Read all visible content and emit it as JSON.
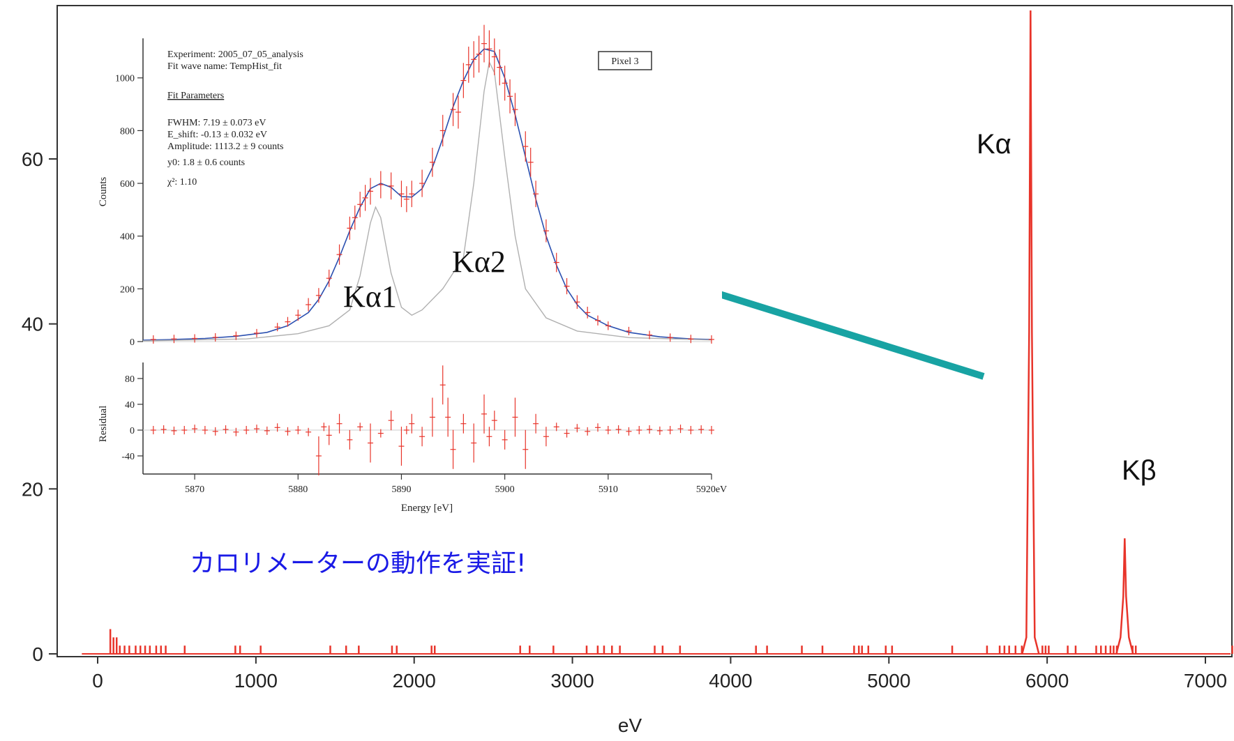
{
  "chart_data": [
    {
      "type": "line",
      "xlabel": "eV",
      "ylabel": "",
      "xlim": [
        -100,
        7200
      ],
      "ylim": [
        -1,
        78
      ],
      "xticks": [
        0,
        1000,
        2000,
        3000,
        4000,
        5000,
        6000,
        7000
      ],
      "yticks": [
        0,
        20,
        40,
        60
      ],
      "grid": false,
      "series": [
        {
          "color": "#e8342a",
          "peaks": [
            {
              "x": 5895,
              "y": 78,
              "label": "Kα"
            },
            {
              "x": 6490,
              "y": 14,
              "label": "Kβ"
            }
          ],
          "noise": [
            [
              80,
              3
            ],
            [
              100,
              2
            ],
            [
              120,
              2
            ],
            [
              140,
              1
            ],
            [
              170,
              1
            ],
            [
              200,
              1
            ],
            [
              240,
              1
            ],
            [
              270,
              1
            ],
            [
              300,
              1
            ],
            [
              330,
              1
            ],
            [
              370,
              1
            ],
            [
              400,
              1
            ],
            [
              430,
              1
            ],
            [
              550,
              1
            ],
            [
              870,
              1
            ],
            [
              900,
              1
            ],
            [
              1030,
              1
            ],
            [
              1470,
              1
            ],
            [
              1570,
              1
            ],
            [
              1650,
              1
            ],
            [
              1860,
              1
            ],
            [
              1890,
              1
            ],
            [
              2110,
              1
            ],
            [
              2130,
              1
            ],
            [
              2670,
              1
            ],
            [
              2730,
              1
            ],
            [
              2880,
              1
            ],
            [
              3090,
              1
            ],
            [
              3160,
              1
            ],
            [
              3200,
              1
            ],
            [
              3250,
              1
            ],
            [
              3300,
              1
            ],
            [
              3520,
              1
            ],
            [
              3570,
              1
            ],
            [
              3680,
              1
            ],
            [
              4160,
              1
            ],
            [
              4230,
              1
            ],
            [
              4450,
              1
            ],
            [
              4580,
              1
            ],
            [
              4780,
              1
            ],
            [
              4810,
              1
            ],
            [
              4830,
              1
            ],
            [
              4870,
              1
            ],
            [
              4980,
              1
            ],
            [
              5020,
              1
            ],
            [
              5400,
              1
            ],
            [
              5620,
              1
            ],
            [
              5700,
              1
            ],
            [
              5730,
              1
            ],
            [
              5760,
              1
            ],
            [
              5800,
              1
            ],
            [
              5840,
              1
            ],
            [
              5970,
              1
            ],
            [
              5990,
              1
            ],
            [
              6010,
              1
            ],
            [
              6130,
              1
            ],
            [
              6180,
              1
            ],
            [
              6310,
              1
            ],
            [
              6340,
              1
            ],
            [
              6370,
              1
            ],
            [
              6400,
              1
            ],
            [
              6420,
              1
            ],
            [
              6440,
              1
            ],
            [
              6540,
              1
            ],
            [
              6560,
              1
            ],
            [
              7170,
              1
            ]
          ]
        }
      ],
      "annotations": [
        "Kα",
        "Kβ"
      ],
      "caption": "カロリメーターの動作を実証!"
    },
    {
      "type": "line",
      "xlabel": "Energy [eV]",
      "ylabel": "Counts",
      "xlim": [
        5865,
        5920
      ],
      "ylim": [
        0,
        1150
      ],
      "xticks": [
        5870,
        5880,
        5890,
        5900,
        5910,
        5920
      ],
      "xtick_labels": [
        "5870",
        "5880",
        "5890",
        "5900",
        "5910",
        "5920eV"
      ],
      "yticks": [
        0,
        200,
        400,
        600,
        800,
        1000
      ],
      "legend_box": "Pixel 3",
      "info": [
        "Experiment: 2005_07_05_analysis",
        "Fit wave name: TempHist_fit",
        "Fit Parameters",
        "FWHM: 7.19 ± 0.073 eV",
        "E_shift: -0.13 ± 0.032 eV",
        "Amplitude: 1113.2 ± 9 counts",
        "y0: 1.8 ± 0.6 counts",
        "χ²: 1.10"
      ],
      "annotations": [
        "Kα1",
        "Kα2"
      ],
      "series": [
        {
          "color": "#2a4fb0",
          "kind": "fit",
          "points": [
            [
              5865,
              5
            ],
            [
              5868,
              8
            ],
            [
              5871,
              12
            ],
            [
              5874,
              20
            ],
            [
              5877,
              35
            ],
            [
              5879,
              60
            ],
            [
              5881,
              110
            ],
            [
              5882,
              160
            ],
            [
              5883,
              230
            ],
            [
              5884,
              320
            ],
            [
              5885,
              420
            ],
            [
              5886,
              510
            ],
            [
              5887,
              580
            ],
            [
              5888,
              600
            ],
            [
              5889,
              585
            ],
            [
              5890,
              550
            ],
            [
              5891,
              548
            ],
            [
              5892,
              580
            ],
            [
              5893,
              660
            ],
            [
              5894,
              770
            ],
            [
              5895,
              890
            ],
            [
              5896,
              990
            ],
            [
              5897,
              1070
            ],
            [
              5898,
              1110
            ],
            [
              5899,
              1100
            ],
            [
              5900,
              1000
            ],
            [
              5901,
              860
            ],
            [
              5902,
              700
            ],
            [
              5903,
              540
            ],
            [
              5904,
              400
            ],
            [
              5905,
              290
            ],
            [
              5906,
              200
            ],
            [
              5907,
              140
            ],
            [
              5908,
              100
            ],
            [
              5910,
              60
            ],
            [
              5912,
              35
            ],
            [
              5915,
              18
            ],
            [
              5918,
              10
            ],
            [
              5920,
              8
            ]
          ]
        },
        {
          "color": "#b0b0b0",
          "kind": "component",
          "points": [
            [
              5865,
              3
            ],
            [
              5875,
              10
            ],
            [
              5880,
              30
            ],
            [
              5883,
              60
            ],
            [
              5885,
              120
            ],
            [
              5886,
              250
            ],
            [
              5887,
              450
            ],
            [
              5887.5,
              510
            ],
            [
              5888,
              470
            ],
            [
              5889,
              260
            ],
            [
              5890,
              130
            ],
            [
              5891,
              100
            ],
            [
              5892,
              120
            ],
            [
              5894,
              200
            ],
            [
              5896,
              320
            ],
            [
              5897,
              600
            ],
            [
              5898,
              950
            ],
            [
              5898.5,
              1060
            ],
            [
              5899,
              1020
            ],
            [
              5900,
              700
            ],
            [
              5901,
              400
            ],
            [
              5902,
              200
            ],
            [
              5904,
              90
            ],
            [
              5907,
              40
            ],
            [
              5912,
              15
            ],
            [
              5920,
              6
            ]
          ]
        },
        {
          "color": "#e8342a",
          "kind": "data",
          "points": [
            [
              5866,
              8
            ],
            [
              5868,
              10
            ],
            [
              5870,
              12
            ],
            [
              5872,
              16
            ],
            [
              5874,
              22
            ],
            [
              5876,
              32
            ],
            [
              5878,
              55
            ],
            [
              5879,
              75
            ],
            [
              5880,
              100
            ],
            [
              5881,
              140
            ],
            [
              5882,
              175
            ],
            [
              5883,
              240
            ],
            [
              5884,
              330
            ],
            [
              5885,
              430
            ],
            [
              5885.5,
              470
            ],
            [
              5886,
              520
            ],
            [
              5886.5,
              545
            ],
            [
              5887,
              570
            ],
            [
              5888,
              595
            ],
            [
              5889,
              590
            ],
            [
              5890,
              560
            ],
            [
              5890.5,
              540
            ],
            [
              5891,
              560
            ],
            [
              5892,
              600
            ],
            [
              5893,
              680
            ],
            [
              5894,
              800
            ],
            [
              5895,
              880
            ],
            [
              5895.5,
              870
            ],
            [
              5896,
              990
            ],
            [
              5896.5,
              1050
            ],
            [
              5897,
              1070
            ],
            [
              5897.5,
              1090
            ],
            [
              5898,
              1130
            ],
            [
              5898.5,
              1110
            ],
            [
              5899,
              1080
            ],
            [
              5899.5,
              1040
            ],
            [
              5900,
              980
            ],
            [
              5900.5,
              930
            ],
            [
              5901,
              880
            ],
            [
              5902,
              740
            ],
            [
              5902.5,
              680
            ],
            [
              5903,
              560
            ],
            [
              5904,
              420
            ],
            [
              5905,
              300
            ],
            [
              5906,
              210
            ],
            [
              5907,
              150
            ],
            [
              5908,
              110
            ],
            [
              5909,
              80
            ],
            [
              5910,
              60
            ],
            [
              5912,
              40
            ],
            [
              5914,
              25
            ],
            [
              5916,
              15
            ],
            [
              5918,
              10
            ],
            [
              5920,
              8
            ]
          ]
        }
      ]
    },
    {
      "type": "scatter",
      "xlabel": "",
      "ylabel": "Residual",
      "xlim": [
        5865,
        5920
      ],
      "ylim": [
        -55,
        50
      ],
      "yticks": [
        -40,
        0,
        40,
        80
      ],
      "series": [
        {
          "color": "#e8342a",
          "points": [
            [
              5866,
              0
            ],
            [
              5867,
              1
            ],
            [
              5868,
              -1
            ],
            [
              5869,
              0
            ],
            [
              5870,
              2
            ],
            [
              5871,
              0
            ],
            [
              5872,
              -2
            ],
            [
              5873,
              1
            ],
            [
              5874,
              -3
            ],
            [
              5875,
              0
            ],
            [
              5876,
              2
            ],
            [
              5877,
              -1
            ],
            [
              5878,
              4
            ],
            [
              5879,
              -2
            ],
            [
              5880,
              0
            ],
            [
              5881,
              -3
            ],
            [
              5882,
              -40
            ],
            [
              5882.5,
              5
            ],
            [
              5883,
              -8
            ],
            [
              5884,
              10
            ],
            [
              5885,
              -15
            ],
            [
              5886,
              5
            ],
            [
              5887,
              -20
            ],
            [
              5888,
              -5
            ],
            [
              5889,
              15
            ],
            [
              5890,
              -25
            ],
            [
              5890.5,
              0
            ],
            [
              5891,
              10
            ],
            [
              5892,
              -10
            ],
            [
              5893,
              20
            ],
            [
              5894,
              70
            ],
            [
              5894.5,
              20
            ],
            [
              5895,
              -30
            ],
            [
              5896,
              10
            ],
            [
              5897,
              -20
            ],
            [
              5898,
              25
            ],
            [
              5898.5,
              -10
            ],
            [
              5899,
              15
            ],
            [
              5900,
              -15
            ],
            [
              5901,
              20
            ],
            [
              5902,
              -30
            ],
            [
              5903,
              10
            ],
            [
              5904,
              -10
            ],
            [
              5905,
              5
            ],
            [
              5906,
              -5
            ],
            [
              5907,
              3
            ],
            [
              5908,
              -2
            ],
            [
              5909,
              4
            ],
            [
              5910,
              0
            ],
            [
              5911,
              1
            ],
            [
              5912,
              -2
            ],
            [
              5913,
              0
            ],
            [
              5914,
              1
            ],
            [
              5915,
              -1
            ],
            [
              5916,
              0
            ],
            [
              5917,
              2
            ],
            [
              5918,
              0
            ],
            [
              5919,
              1
            ],
            [
              5920,
              0
            ]
          ]
        }
      ]
    }
  ]
}
